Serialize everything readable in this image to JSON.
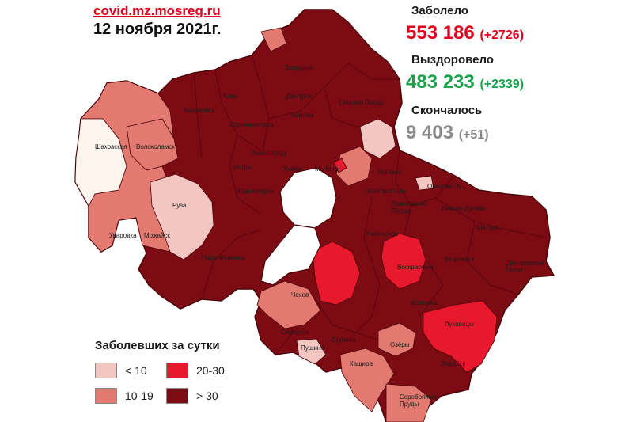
{
  "header": {
    "source": "covid.mz.mosreg.ru",
    "date": "12 ноября 2021г."
  },
  "stats": {
    "infected": {
      "label": "Заболело",
      "value": "553 186",
      "delta": "(+2726)",
      "color": "#e0001b"
    },
    "recovered": {
      "label": "Выздоровело",
      "value": "483 233",
      "delta": "(+2339)",
      "color": "#1aa34a"
    },
    "died": {
      "label": "Скончалось",
      "value": "9 403",
      "delta": "(+51)",
      "color": "#8a8a8a"
    }
  },
  "legend": {
    "title": "Заболевших за сутки",
    "items": [
      {
        "label": "< 10",
        "color": "#f2c6c1"
      },
      {
        "label": "20-30",
        "color": "#e8192c"
      },
      {
        "label": "10-19",
        "color": "#e27a72"
      },
      {
        "label": "> 30",
        "color": "#7d0b14"
      }
    ]
  },
  "map": {
    "colors": {
      "c1": "#fdf4ee",
      "lt10": "#f2c6c1",
      "c10_19": "#e27a72",
      "c20_30": "#e8192c",
      "gt30": "#7d0b14",
      "border": "#4a0308"
    },
    "labels": {
      "zaprudnya": "Запрудня",
      "klin": "Клин",
      "vysokovsk": "Высоковск",
      "dmitrov": "Дмитров",
      "yakhroma": "Яхрома",
      "sergiev_posad": "Сергиев Посад",
      "solnechnogorsk": "Солнечногорск",
      "shakhovskaya": "Шаховская",
      "volokolamsk": "Волоколамск",
      "zelenograd": "Зеленоград",
      "istra": "Истра",
      "khimki": "Химки",
      "mytishchi": "Мытищи",
      "noginsk": "Ногинск",
      "orekhovo": "Орехово-Зу...",
      "ruza": "Руза",
      "krasnogorsk": "Красногорск",
      "elektrostal": "Электросталь",
      "pavlovsky_posad": "Павловский\nПосад",
      "likino": "Ликино-Дулёво",
      "uvarovka": "Уваровка",
      "mozhaysk": "Можайск",
      "naro_fominsk": "Наро-Фоминск",
      "ramenskoe": "Раменское",
      "shatura": "Шатура",
      "voskresensk": "Воскресенск",
      "egoryevsk": "Егорьевск",
      "dmitrovsky_pogost": "Дмитровский\nПогост",
      "chekhov": "Чехов",
      "kolomna": "Коломна",
      "lukhovitsy": "Луховицы",
      "serpukhov": "Серпухов",
      "pushchino": "Пущино",
      "stupino": "Ступино",
      "ozyory": "Озёры",
      "zaraysk": "Зарайск",
      "kashira": "Кашира",
      "serebryanye_prudy": "Серебряные\nПруды"
    }
  }
}
